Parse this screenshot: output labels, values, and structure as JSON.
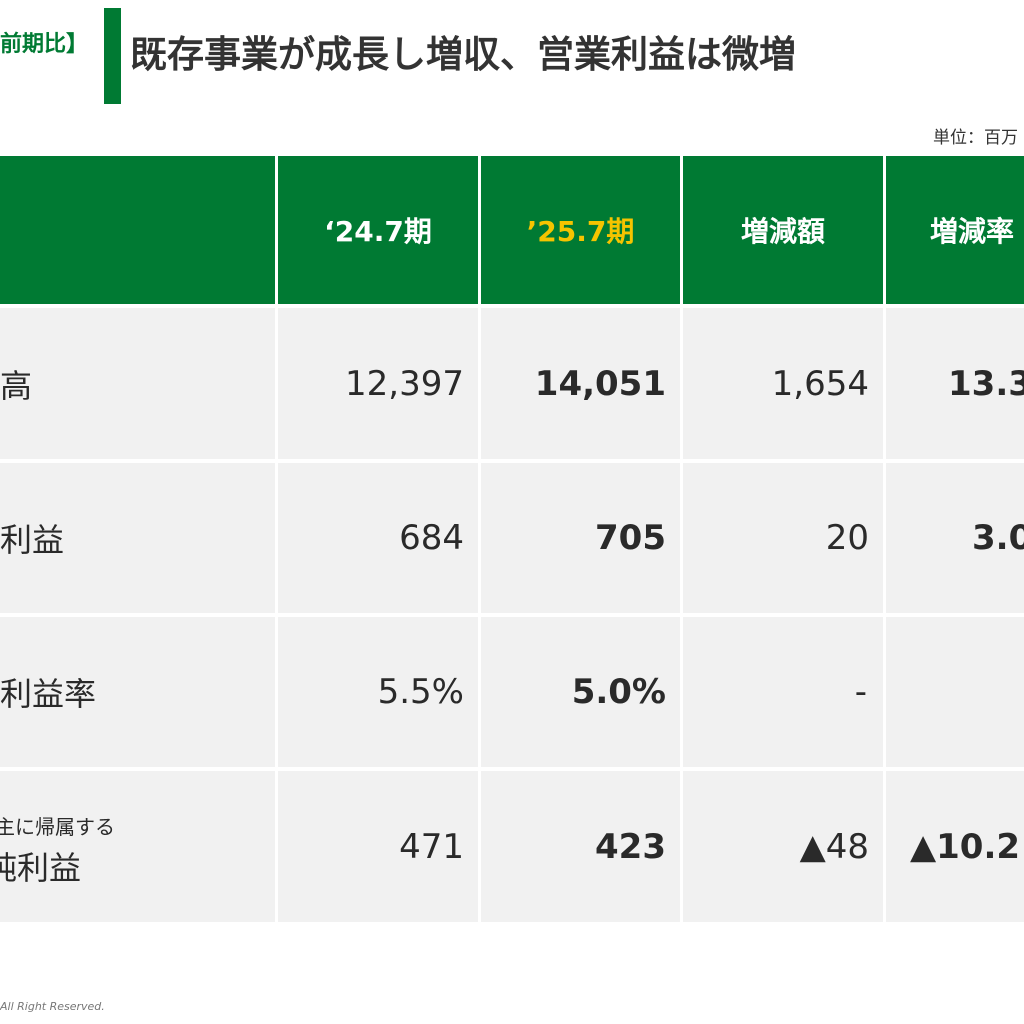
{
  "header": {
    "tag": "前期比】",
    "title": "既存事業が成長し増収、営業利益は微増",
    "unit": "単位：百万"
  },
  "table": {
    "columns": [
      "‘24.7期",
      "’25.7期",
      "増減額",
      "増減率"
    ],
    "rows": [
      {
        "label": "高",
        "v2024": "12,397",
        "v2025": "14,051",
        "diff": "1,654",
        "rate": "13.3"
      },
      {
        "label": "利益",
        "v2024": "684",
        "v2025": "705",
        "diff": "20",
        "rate": "3.0"
      },
      {
        "label": "利益率",
        "v2024": "5.5%",
        "v2025": "5.0%",
        "diff": "-",
        "rate": ""
      },
      {
        "label_small": "主に帰属する",
        "label": "純利益",
        "v2024": "471",
        "v2025": "423",
        "diff": "▲48",
        "rate": "▲10.2"
      }
    ]
  },
  "footer": {
    "copyright": "All Right Reserved."
  },
  "colors": {
    "brand_green": "#007a33",
    "accent_yellow": "#f5c400",
    "row_bg": "#f1f1f1"
  }
}
